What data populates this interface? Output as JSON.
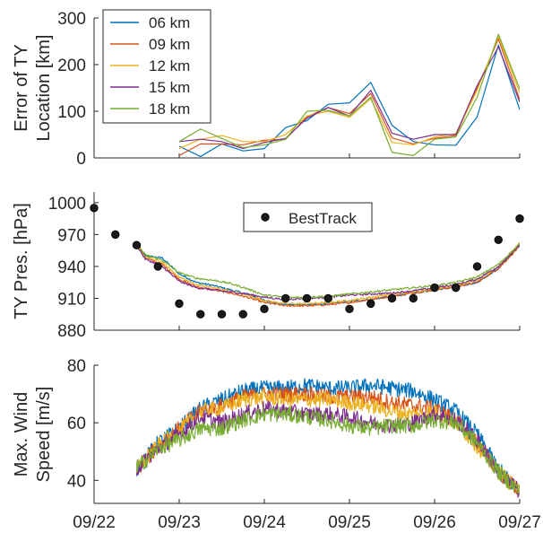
{
  "colors": {
    "06 km": "#0072BD",
    "09 km": "#D95319",
    "12 km": "#EDB120",
    "15 km": "#7E2F8E",
    "18 km": "#77AC30",
    "besttrack": "#1a1a1a",
    "axis": "#262626"
  },
  "x_tick_labels": [
    "09/22",
    "09/23",
    "09/24",
    "09/25",
    "09/26",
    "09/27"
  ],
  "chart_data": [
    {
      "type": "line",
      "ylabel": [
        "Error of TY",
        "Location [km]"
      ],
      "xlim": [
        0,
        5
      ],
      "ylim": [
        0,
        300
      ],
      "yticks": [
        0,
        100,
        200,
        300
      ],
      "grid": false,
      "legend_position": "top-left",
      "x": [
        1.0,
        1.25,
        1.5,
        1.75,
        2.0,
        2.25,
        2.5,
        2.75,
        3.0,
        3.25,
        3.5,
        3.75,
        4.0,
        4.25,
        4.5,
        4.75,
        5.0
      ],
      "series": [
        {
          "name": "06 km",
          "values": [
            25,
            3,
            30,
            15,
            20,
            65,
            80,
            115,
            118,
            162,
            70,
            35,
            28,
            27,
            88,
            242,
            103
          ]
        },
        {
          "name": "09 km",
          "values": [
            5,
            30,
            30,
            28,
            38,
            40,
            88,
            108,
            95,
            138,
            43,
            30,
            42,
            48,
            150,
            255,
            125
          ]
        },
        {
          "name": "12 km",
          "values": [
            20,
            40,
            48,
            35,
            35,
            50,
            90,
            100,
            87,
            127,
            33,
            28,
            45,
            52,
            145,
            260,
            140
          ]
        },
        {
          "name": "15 km",
          "values": [
            35,
            40,
            35,
            20,
            33,
            42,
            85,
            108,
            90,
            145,
            53,
            40,
            50,
            50,
            155,
            238,
            120
          ]
        },
        {
          "name": "18 km",
          "values": [
            35,
            62,
            42,
            22,
            28,
            40,
            100,
            102,
            90,
            130,
            12,
            5,
            40,
            45,
            130,
            265,
            148
          ]
        }
      ]
    },
    {
      "type": "line",
      "ylabel": [
        "TY Pres. [hPa]"
      ],
      "xlim": [
        0,
        5
      ],
      "ylim": [
        880,
        1010
      ],
      "yticks": [
        880,
        910,
        940,
        970,
        1000
      ],
      "grid": false,
      "legend_position": "top-center",
      "legend": [
        "BestTrack"
      ],
      "x": [
        0.5,
        0.6,
        0.8,
        1.0,
        1.2,
        1.4,
        1.6,
        1.8,
        2.0,
        2.25,
        2.5,
        2.75,
        3.0,
        3.25,
        3.5,
        3.75,
        4.0,
        4.25,
        4.5,
        4.75,
        5.0
      ],
      "series": [
        {
          "name": "06 km",
          "values": [
            960,
            950,
            948,
            933,
            925,
            922,
            918,
            914,
            908,
            904,
            904,
            905,
            907,
            909,
            912,
            915,
            918,
            921,
            925,
            938,
            960
          ]
        },
        {
          "name": "09 km",
          "values": [
            960,
            948,
            942,
            928,
            921,
            918,
            915,
            911,
            906,
            903,
            903,
            904,
            906,
            909,
            912,
            915,
            918,
            921,
            925,
            938,
            959
          ]
        },
        {
          "name": "12 km",
          "values": [
            960,
            949,
            944,
            930,
            923,
            920,
            917,
            913,
            908,
            905,
            905,
            906,
            908,
            911,
            914,
            916,
            919,
            922,
            927,
            940,
            962
          ]
        },
        {
          "name": "15 km",
          "values": [
            960,
            947,
            940,
            926,
            920,
            918,
            916,
            914,
            911,
            909,
            910,
            911,
            913,
            914,
            915,
            917,
            920,
            923,
            928,
            940,
            960
          ]
        },
        {
          "name": "18 km",
          "values": [
            962,
            951,
            946,
            934,
            929,
            927,
            924,
            919,
            913,
            911,
            911,
            912,
            914,
            916,
            918,
            920,
            922,
            925,
            930,
            942,
            961
          ]
        }
      ],
      "besttrack": {
        "name": "BestTrack",
        "x": [
          0.0,
          0.25,
          0.5,
          0.75,
          1.0,
          1.25,
          1.5,
          1.75,
          2.0,
          2.25,
          2.5,
          2.75,
          3.0,
          3.25,
          3.5,
          3.75,
          4.0,
          4.25,
          4.5,
          4.75,
          5.0
        ],
        "values": [
          995,
          970,
          960,
          940,
          905,
          895,
          895,
          895,
          900,
          910,
          910,
          910,
          900,
          905,
          910,
          910,
          920,
          920,
          940,
          965,
          985
        ]
      }
    },
    {
      "type": "line",
      "ylabel": [
        "Max. Wind",
        "Speed [m/s]"
      ],
      "xlim": [
        0,
        5
      ],
      "ylim": [
        32,
        80
      ],
      "yticks": [
        40,
        60,
        80
      ],
      "grid": false,
      "x": [
        0.5,
        0.75,
        1.0,
        1.25,
        1.5,
        1.75,
        2.0,
        2.25,
        2.5,
        2.75,
        3.0,
        3.25,
        3.5,
        3.75,
        4.0,
        4.25,
        4.5,
        4.75,
        5.0
      ],
      "series": [
        {
          "name": "06 km",
          "values": [
            44,
            53,
            58,
            65,
            68,
            71,
            72,
            72,
            73,
            72,
            72,
            73,
            72,
            71,
            68,
            64,
            56,
            44,
            36
          ]
        },
        {
          "name": "09 km",
          "values": [
            44,
            52,
            58,
            64,
            66,
            69,
            70,
            70,
            70,
            69,
            69,
            69,
            67,
            66,
            65,
            61,
            53,
            43,
            36
          ]
        },
        {
          "name": "12 km",
          "values": [
            44,
            52,
            57,
            64,
            65,
            68,
            69,
            68,
            68,
            68,
            67,
            66,
            64,
            63,
            64,
            60,
            52,
            43,
            36
          ]
        },
        {
          "name": "15 km",
          "values": [
            44,
            51,
            56,
            62,
            60,
            63,
            65,
            64,
            63,
            63,
            62,
            60,
            59,
            60,
            63,
            61,
            54,
            43,
            36
          ]
        },
        {
          "name": "18 km",
          "values": [
            44,
            51,
            54,
            58,
            58,
            61,
            63,
            63,
            62,
            61,
            59,
            58,
            59,
            59,
            61,
            60,
            53,
            43,
            36
          ]
        }
      ]
    }
  ]
}
